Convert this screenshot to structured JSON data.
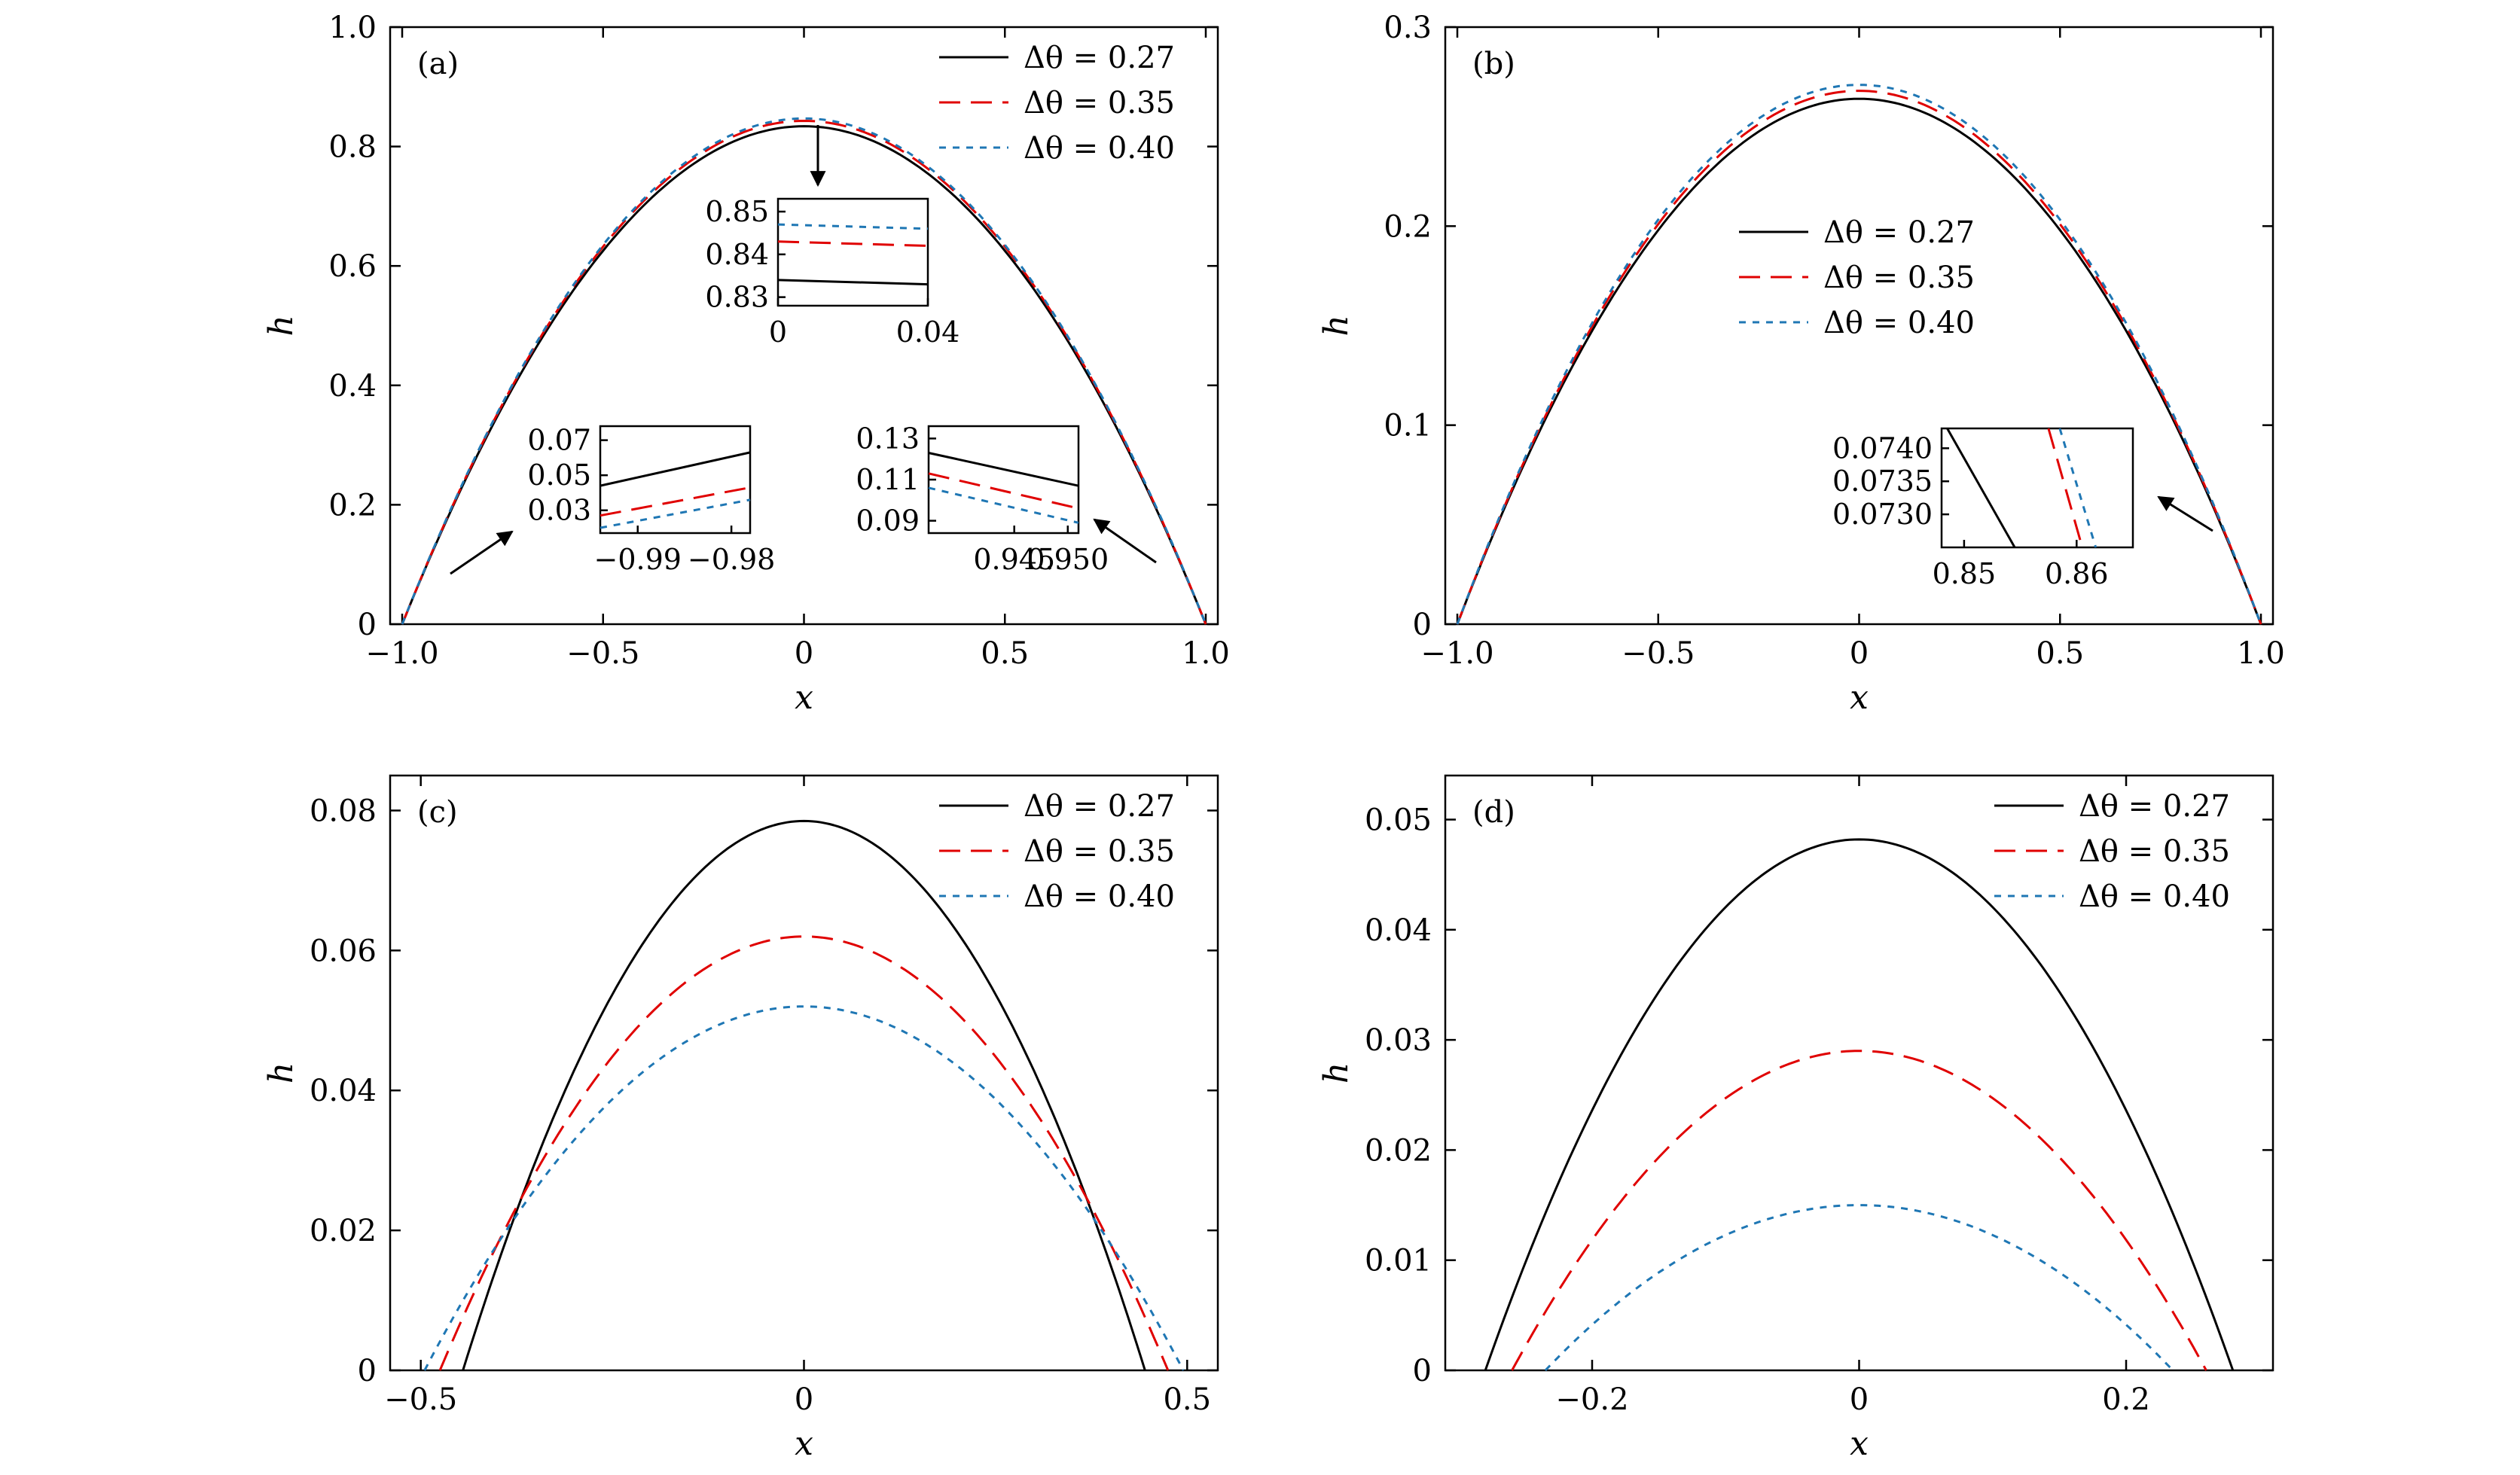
{
  "legend": [
    "Δθ = 0.27",
    "Δθ = 0.35",
    "Δθ = 0.40"
  ],
  "series_styles": [
    {
      "color": "#000000",
      "dash": "none"
    },
    {
      "color": "#e00000",
      "dash": "dashed"
    },
    {
      "color": "#1f77b4",
      "dash": "dotted"
    }
  ],
  "chart_data": [
    {
      "id": "a",
      "panel_label": "(a)",
      "type": "line",
      "xlabel": "x",
      "ylabel": "h",
      "xlim": [
        -1.03,
        1.03
      ],
      "ylim": [
        0,
        1.0
      ],
      "xticks": [
        -1.0,
        -0.5,
        0,
        0.5,
        1.0
      ],
      "xtick_labels": [
        "−1.0",
        "−0.5",
        "0",
        "0.5",
        "1.0"
      ],
      "yticks": [
        0,
        0.2,
        0.4,
        0.6,
        0.8,
        1.0
      ],
      "ytick_labels": [
        "0",
        "0.2",
        "0.4",
        "0.6",
        "0.8",
        "1.0"
      ],
      "legend_position": "top-right",
      "series": [
        {
          "name": "Δθ = 0.27",
          "half_width": 1.0,
          "peak": 0.834
        },
        {
          "name": "Δθ = 0.35",
          "half_width": 1.0,
          "peak": 0.843
        },
        {
          "name": "Δθ = 0.40",
          "half_width": 1.0,
          "peak": 0.847
        }
      ],
      "insets": [
        {
          "xlim": [
            0,
            0.04
          ],
          "ylim": [
            0.828,
            0.853
          ],
          "xtick_labels": [
            "0",
            "0.04"
          ],
          "xticks": [
            0,
            0.04
          ],
          "ytick_labels": [
            "0.85",
            "0.84",
            "0.83"
          ],
          "yticks": [
            0.85,
            0.84,
            0.83
          ],
          "series": [
            {
              "x": [
                0,
                0.04
              ],
              "y": [
                0.834,
                0.833
              ]
            },
            {
              "x": [
                0,
                0.04
              ],
              "y": [
                0.843,
                0.842
              ]
            },
            {
              "x": [
                0,
                0.04
              ],
              "y": [
                0.847,
                0.846
              ]
            }
          ]
        },
        {
          "xlim": [
            -0.994,
            -0.978
          ],
          "ylim": [
            0.017,
            0.078
          ],
          "xtick_labels": [
            "−0.99",
            "−0.98"
          ],
          "xticks": [
            -0.99,
            -0.98
          ],
          "ytick_labels": [
            "0.07",
            "0.05",
            "0.03"
          ],
          "yticks": [
            0.07,
            0.05,
            0.03
          ],
          "series": [
            {
              "x": [
                -0.994,
                -0.978
              ],
              "y": [
                0.044,
                0.063
              ]
            },
            {
              "x": [
                -0.994,
                -0.978
              ],
              "y": [
                0.027,
                0.043
              ]
            },
            {
              "x": [
                -0.994,
                -0.978
              ],
              "y": [
                0.02,
                0.036
              ]
            }
          ]
        },
        {
          "xlim": [
            0.937,
            0.951
          ],
          "ylim": [
            0.084,
            0.136
          ],
          "xtick_labels": [
            "0.945",
            "0.950"
          ],
          "xticks": [
            0.945,
            0.95
          ],
          "ytick_labels": [
            "0.13",
            "0.11",
            "0.09"
          ],
          "yticks": [
            0.13,
            0.11,
            0.09
          ],
          "series": [
            {
              "x": [
                0.937,
                0.951
              ],
              "y": [
                0.123,
                0.107
              ]
            },
            {
              "x": [
                0.937,
                0.951
              ],
              "y": [
                0.113,
                0.096
              ]
            },
            {
              "x": [
                0.937,
                0.951
              ],
              "y": [
                0.106,
                0.089
              ]
            }
          ]
        }
      ]
    },
    {
      "id": "b",
      "panel_label": "(b)",
      "type": "line",
      "xlabel": "x",
      "ylabel": "h",
      "xlim": [
        -1.03,
        1.03
      ],
      "ylim": [
        0,
        0.3
      ],
      "xticks": [
        -1.0,
        -0.5,
        0,
        0.5,
        1.0
      ],
      "xtick_labels": [
        "−1.0",
        "−0.5",
        "0",
        "0.5",
        "1.0"
      ],
      "yticks": [
        0,
        0.1,
        0.2,
        0.3
      ],
      "ytick_labels": [
        "0",
        "0.1",
        "0.2",
        "0.3"
      ],
      "legend_position": "center",
      "series": [
        {
          "name": "Δθ = 0.27",
          "half_width": 1.0,
          "peak": 0.264
        },
        {
          "name": "Δθ = 0.35",
          "half_width": 1.0,
          "peak": 0.268
        },
        {
          "name": "Δθ = 0.40",
          "half_width": 1.0,
          "peak": 0.271
        }
      ],
      "insets": [
        {
          "xlim": [
            0.848,
            0.865
          ],
          "ylim": [
            0.0725,
            0.0743
          ],
          "xtick_labels": [
            "0.85",
            "0.86"
          ],
          "xticks": [
            0.85,
            0.86
          ],
          "ytick_labels": [
            "0.0740",
            "0.0735",
            "0.0730"
          ],
          "yticks": [
            0.074,
            0.0735,
            0.073
          ],
          "series": [
            {
              "x": [
                0.8485,
                0.8545
              ],
              "y": [
                0.0743,
                0.0725
              ]
            },
            {
              "x": [
                0.8575,
                0.8605
              ],
              "y": [
                0.0743,
                0.0725
              ]
            },
            {
              "x": [
                0.8585,
                0.8617
              ],
              "y": [
                0.0743,
                0.0725
              ]
            }
          ]
        }
      ]
    },
    {
      "id": "c",
      "panel_label": "(c)",
      "type": "line",
      "xlabel": "x",
      "ylabel": "h",
      "xlim": [
        -0.54,
        0.54
      ],
      "ylim": [
        0,
        0.085
      ],
      "xticks": [
        -0.5,
        0,
        0.5
      ],
      "xtick_labels": [
        "−0.5",
        "0",
        "0.5"
      ],
      "yticks": [
        0,
        0.02,
        0.04,
        0.06,
        0.08
      ],
      "ytick_labels": [
        "0",
        "0.02",
        "0.04",
        "0.06",
        "0.08"
      ],
      "legend_position": "top-right",
      "series": [
        {
          "name": "Δθ = 0.27",
          "half_width": 0.445,
          "peak": 0.0785
        },
        {
          "name": "Δθ = 0.35",
          "half_width": 0.475,
          "peak": 0.062
        },
        {
          "name": "Δθ = 0.40",
          "half_width": 0.495,
          "peak": 0.052
        }
      ]
    },
    {
      "id": "d",
      "panel_label": "(d)",
      "type": "line",
      "xlabel": "x",
      "ylabel": "h",
      "xlim": [
        -0.31,
        0.31
      ],
      "ylim": [
        0,
        0.054
      ],
      "xticks": [
        -0.2,
        0,
        0.2
      ],
      "xtick_labels": [
        "−0.2",
        "0",
        "0.2"
      ],
      "yticks": [
        0,
        0.01,
        0.02,
        0.03,
        0.04,
        0.05
      ],
      "ytick_labels": [
        "0",
        "0.01",
        "0.02",
        "0.03",
        "0.04",
        "0.05"
      ],
      "legend_position": "top-right",
      "series": [
        {
          "name": "Δθ = 0.27",
          "half_width": 0.28,
          "peak": 0.0482
        },
        {
          "name": "Δθ = 0.35",
          "half_width": 0.26,
          "peak": 0.029
        },
        {
          "name": "Δθ = 0.40",
          "half_width": 0.235,
          "peak": 0.015
        }
      ]
    }
  ]
}
